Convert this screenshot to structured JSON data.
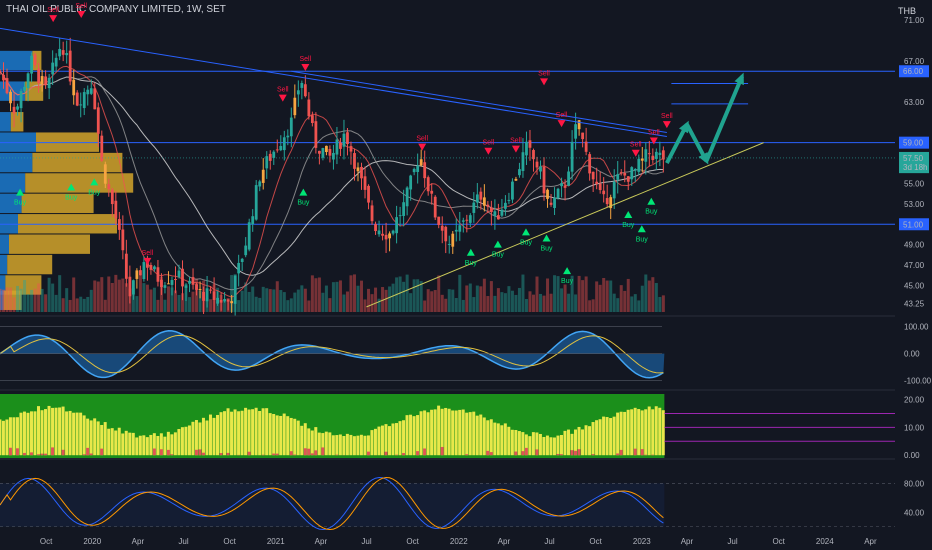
{
  "header": {
    "symbol_line": "THAI OIL PUBLIC COMPANY LIMITED, 1W, SET",
    "currency": "THB"
  },
  "colors": {
    "background": "#131722",
    "up": "#26a69a",
    "down": "#ef5350",
    "orange": "#f7a541",
    "buy": "#00e676",
    "sell": "#ff1744",
    "level_line": "#2962ff",
    "trend_support": "#c9c95a",
    "projection_arrow": "#20a38f",
    "vp_blue": "#1e88e5",
    "vp_gold": "#d4a52a"
  },
  "chart_data": {
    "type": "candlestick",
    "title": "",
    "price_axis": {
      "ylim": [
        42.4,
        72.2
      ],
      "tick_labels": [
        "71.00",
        "67.00",
        "63.00",
        "59.00",
        "55.00",
        "53.00",
        "51.00",
        "49.00",
        "47.00",
        "45.00",
        "43.25"
      ],
      "tick_values": [
        71,
        67,
        63,
        59,
        55,
        53,
        51,
        49,
        47,
        45,
        43.25
      ],
      "highlight_labels": [
        {
          "text": "66.00",
          "value": 66.0,
          "color": "#2962ff"
        },
        {
          "text": "59.00",
          "value": 59.0,
          "color": "#2962ff"
        },
        {
          "text": "57.50",
          "value": 57.5,
          "color": "#26a69a"
        },
        {
          "text": "3d 18h",
          "value": 56.6,
          "color": "#26a69a"
        },
        {
          "text": "51.00",
          "value": 51.0,
          "color": "#2962ff"
        }
      ]
    },
    "time_axis": {
      "labels": [
        "Oct",
        "2020",
        "Apr",
        "Jul",
        "Oct",
        "2021",
        "Apr",
        "Jul",
        "Oct",
        "2022",
        "Apr",
        "Jul",
        "Oct",
        "2023",
        "Apr",
        "Jul",
        "Oct",
        "2024",
        "Apr"
      ],
      "dates": [
        "2019-10-01",
        "2020-01-01",
        "2020-04-01",
        "2020-07-01",
        "2020-10-01",
        "2021-01-01",
        "2021-04-01",
        "2021-07-01",
        "2021-10-01",
        "2022-01-01",
        "2022-04-01",
        "2022-07-01",
        "2022-10-01",
        "2023-01-01",
        "2023-04-01",
        "2023-07-01",
        "2023-10-01",
        "2024-01-01",
        "2024-04-01"
      ]
    },
    "horizontal_levels": [
      66.0,
      59.0,
      51.0
    ],
    "price_path": [
      [
        "2019-07-01",
        66
      ],
      [
        "2019-08-01",
        62
      ],
      [
        "2019-09-01",
        67
      ],
      [
        "2019-10-01",
        64
      ],
      [
        "2019-11-01",
        69
      ],
      [
        "2019-12-01",
        63
      ],
      [
        "2020-01-01",
        65
      ],
      [
        "2020-01-20",
        57
      ],
      [
        "2020-02-20",
        51
      ],
      [
        "2020-03-15",
        44
      ],
      [
        "2020-04-15",
        47.5
      ],
      [
        "2020-05-15",
        45.5
      ],
      [
        "2020-06-15",
        46
      ],
      [
        "2020-08-01",
        44.3
      ],
      [
        "2020-09-01",
        43.8
      ],
      [
        "2020-10-01",
        43.4
      ],
      [
        "2020-11-01",
        49
      ],
      [
        "2020-12-01",
        56
      ],
      [
        "2021-01-01",
        58.5
      ],
      [
        "2021-02-01",
        61
      ],
      [
        "2021-02-20",
        65.5
      ],
      [
        "2021-03-20",
        59
      ],
      [
        "2021-04-20",
        57.5
      ],
      [
        "2021-05-20",
        60
      ],
      [
        "2021-06-15",
        56
      ],
      [
        "2021-07-15",
        51
      ],
      [
        "2021-08-15",
        50
      ],
      [
        "2021-09-15",
        53
      ],
      [
        "2021-10-15",
        58
      ],
      [
        "2021-11-15",
        52
      ],
      [
        "2021-12-15",
        49
      ],
      [
        "2022-01-15",
        51.5
      ],
      [
        "2022-02-15",
        54
      ],
      [
        "2022-03-15",
        51.5
      ],
      [
        "2022-04-15",
        54.5
      ],
      [
        "2022-05-15",
        58.5
      ],
      [
        "2022-06-10",
        56.5
      ],
      [
        "2022-07-01",
        52.5
      ],
      [
        "2022-08-01",
        55
      ],
      [
        "2022-08-25",
        61
      ],
      [
        "2022-09-20",
        56.5
      ],
      [
        "2022-10-15",
        53
      ],
      [
        "2022-11-15",
        55.5
      ],
      [
        "2022-12-15",
        56
      ],
      [
        "2023-01-15",
        58
      ],
      [
        "2023-02-15",
        57.5
      ]
    ],
    "signals": [
      {
        "label": "Buy",
        "date": "2019-08-10",
        "price": 54.5,
        "type": "buy"
      },
      {
        "label": "Buy",
        "date": "2019-11-20",
        "price": 55.0,
        "type": "buy"
      },
      {
        "label": "Buy",
        "date": "2020-01-05",
        "price": 55.5,
        "type": "buy"
      },
      {
        "label": "Buy",
        "date": "2021-02-25",
        "price": 54.5,
        "type": "buy"
      },
      {
        "label": "Buy",
        "date": "2022-01-25",
        "price": 48.6,
        "type": "buy"
      },
      {
        "label": "Buy",
        "date": "2022-03-20",
        "price": 49.4,
        "type": "buy"
      },
      {
        "label": "Buy",
        "date": "2022-05-15",
        "price": 50.6,
        "type": "buy"
      },
      {
        "label": "Buy",
        "date": "2022-06-25",
        "price": 50.0,
        "type": "buy"
      },
      {
        "label": "Buy",
        "date": "2022-08-05",
        "price": 46.8,
        "type": "buy"
      },
      {
        "label": "Buy",
        "date": "2022-12-05",
        "price": 52.3,
        "type": "buy"
      },
      {
        "label": "Buy",
        "date": "2023-01-20",
        "price": 53.6,
        "type": "buy"
      },
      {
        "label": "Buy",
        "date": "2023-01-01",
        "price": 50.9,
        "type": "buy"
      },
      {
        "label": "Sell",
        "date": "2019-10-15",
        "price": 71.8,
        "type": "sell"
      },
      {
        "label": "Sell",
        "date": "2019-12-10",
        "price": 72.2,
        "type": "sell"
      },
      {
        "label": "Sell",
        "date": "2020-04-20",
        "price": 48.0,
        "type": "sell"
      },
      {
        "label": "Sell",
        "date": "2021-03-01",
        "price": 67.0,
        "type": "sell"
      },
      {
        "label": "Sell",
        "date": "2021-01-15",
        "price": 64.0,
        "type": "sell"
      },
      {
        "label": "Sell",
        "date": "2021-10-20",
        "price": 59.2,
        "type": "sell"
      },
      {
        "label": "Sell",
        "date": "2022-03-01",
        "price": 58.8,
        "type": "sell"
      },
      {
        "label": "Sell",
        "date": "2022-04-25",
        "price": 59.0,
        "type": "sell"
      },
      {
        "label": "Sell",
        "date": "2022-07-25",
        "price": 61.5,
        "type": "sell"
      },
      {
        "label": "Sell",
        "date": "2022-06-20",
        "price": 65.6,
        "type": "sell"
      },
      {
        "label": "Sell",
        "date": "2022-12-20",
        "price": 58.6,
        "type": "sell"
      },
      {
        "label": "Sell",
        "date": "2023-01-25",
        "price": 59.8,
        "type": "sell"
      },
      {
        "label": "Sell",
        "date": "2023-02-20",
        "price": 61.4,
        "type": "sell"
      }
    ],
    "trendlines": [
      {
        "name": "resistance",
        "points": [
          [
            "2019-07-01",
            70.2
          ],
          [
            "2023-02-20",
            59.6
          ]
        ]
      },
      {
        "name": "resistance-2",
        "points": [
          [
            "2021-02-01",
            66.0
          ],
          [
            "2023-02-20",
            60.0
          ]
        ]
      },
      {
        "name": "support",
        "points": [
          [
            "2021-07-01",
            42.9
          ],
          [
            "2023-09-01",
            59.0
          ]
        ]
      }
    ],
    "target_levels": [
      {
        "value": 64.8,
        "from": "2023-03-01",
        "to": "2023-08-01"
      },
      {
        "value": 62.8,
        "from": "2023-03-01",
        "to": "2023-08-01"
      }
    ],
    "projection": [
      [
        "2023-02-20",
        57.0
      ],
      [
        "2023-04-01",
        60.8
      ],
      [
        "2023-05-10",
        57.2
      ],
      [
        "2023-07-20",
        65.5
      ]
    ],
    "panels": [
      {
        "name": "oscillator",
        "tick_labels": [
          "100.00",
          "0.00",
          "-100.00"
        ],
        "tick_values": [
          100,
          0,
          -100
        ],
        "ylim": [
          -120,
          125
        ]
      },
      {
        "name": "histogram",
        "tick_labels": [
          "20.00",
          "10.00",
          "0.00"
        ],
        "tick_values": [
          20,
          10,
          0
        ],
        "ylim": [
          -1,
          22
        ]
      },
      {
        "name": "stochastic",
        "tick_labels": [
          "80.00",
          "40.00"
        ],
        "tick_values": [
          80,
          40
        ],
        "ylim": [
          10,
          108
        ]
      }
    ]
  }
}
